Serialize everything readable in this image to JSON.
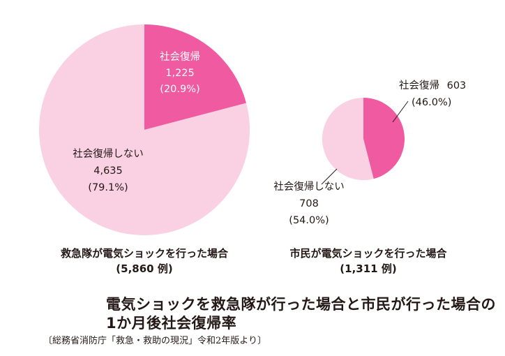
{
  "chart_data": [
    {
      "type": "pie",
      "categories": [
        "社会復帰",
        "社会復帰しない"
      ],
      "values": [
        1225,
        4635
      ],
      "percents": [
        "(20.9%)",
        "(79.1%)"
      ],
      "value_labels": [
        "1,225",
        "4,635"
      ],
      "caption": "救急隊が電気ショックを行った場合",
      "subcaption": "(5,860 例)"
    },
    {
      "type": "pie",
      "categories": [
        "社会復帰",
        "社会復帰しない"
      ],
      "values": [
        603,
        708
      ],
      "percents": [
        "(46.0%)",
        "(54.0%)"
      ],
      "value_labels": [
        "603",
        "708"
      ],
      "caption": "市民が電気ショックを行った場合",
      "subcaption": "(1,311 例)"
    }
  ],
  "title_line1": "電気ショックを救急隊が行った場合と市民が行った場合の",
  "title_line2": "1か月後社会復帰率",
  "source": "〔総務省消防庁「救急・救助の現況」令和2年版より〕",
  "colors": {
    "recovered": "#ef5aa0",
    "not_recovered": "#f9d1e2",
    "text": "#231815"
  }
}
